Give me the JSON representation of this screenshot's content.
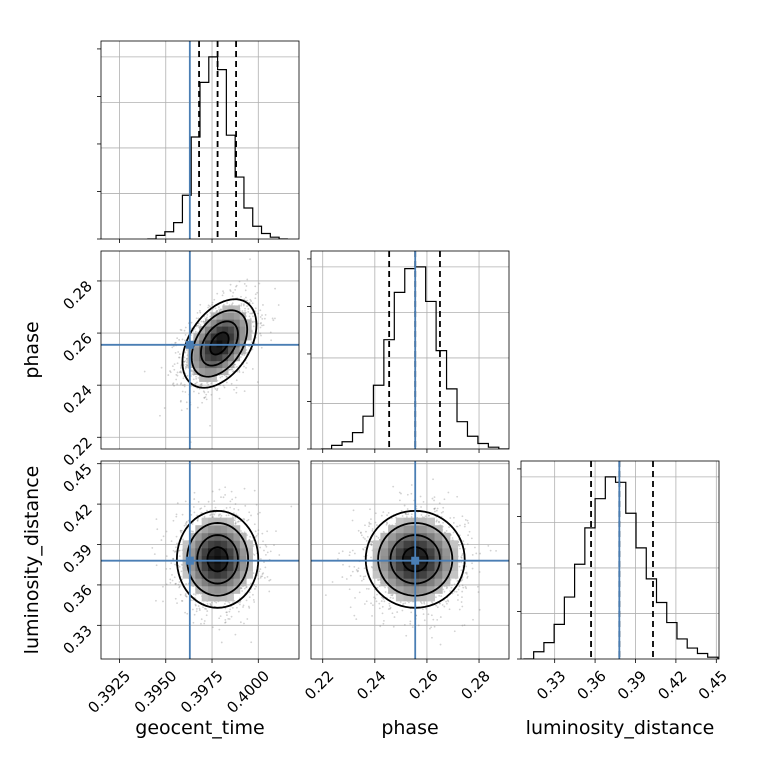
{
  "chart_data": {
    "type": "corner",
    "colors": {
      "truth": "#4a7eb4",
      "hist": "#000000",
      "grid": "#b0b0b0",
      "points": "#7f7f7f"
    },
    "parameters": [
      {
        "name": "geocent_time",
        "label": "geocent_time",
        "range": [
          0.3915,
          0.4022
        ],
        "ticks": [
          "0.3925",
          "0.3950",
          "0.3975",
          "0.4000"
        ],
        "truth": 0.3963,
        "quantiles": [
          0.3968,
          0.3978,
          0.3988
        ],
        "hist": [
          0.0,
          0.02,
          0.04,
          0.09,
          0.24,
          0.56,
          0.86,
          1.0,
          0.93,
          0.57,
          0.34,
          0.17,
          0.07,
          0.03,
          0.01,
          0.0
        ],
        "mean": 0.3978,
        "sd": 0.001
      },
      {
        "name": "phase",
        "label": "phase",
        "range": [
          0.2155,
          0.2915
        ],
        "ticks": [
          "0.22",
          "0.24",
          "0.26",
          "0.28"
        ],
        "truth": 0.2555,
        "quantiles": [
          0.2455,
          0.2555,
          0.265
        ],
        "hist": [
          0.0,
          0.02,
          0.04,
          0.09,
          0.18,
          0.35,
          0.6,
          0.86,
          0.99,
          1.0,
          0.81,
          0.54,
          0.33,
          0.15,
          0.07,
          0.03,
          0.01,
          0.0
        ],
        "mean": 0.2555,
        "sd": 0.0095
      },
      {
        "name": "luminosity_distance",
        "label": "luminosity_distance",
        "range": [
          0.305,
          0.452
        ],
        "ticks": [
          "0.33",
          "0.36",
          "0.39",
          "0.42",
          "0.45"
        ],
        "truth": 0.378,
        "quantiles": [
          0.357,
          0.378,
          0.403
        ],
        "hist": [
          0.0,
          0.04,
          0.09,
          0.19,
          0.34,
          0.52,
          0.72,
          0.88,
          1.0,
          0.97,
          0.8,
          0.61,
          0.44,
          0.31,
          0.2,
          0.11,
          0.06,
          0.03,
          0.01
        ],
        "mean": 0.379,
        "sd": 0.019
      }
    ],
    "panels_2d": [
      {
        "x": "geocent_time",
        "y": "phase",
        "x_mean": 0.3979,
        "y_mean": 0.256,
        "x_sd": 0.001,
        "y_sd": 0.0085,
        "rho": 0.42
      },
      {
        "x": "geocent_time",
        "y": "luminosity_distance",
        "x_mean": 0.3978,
        "y_mean": 0.379,
        "x_sd": 0.0011,
        "y_sd": 0.018,
        "rho": 0.0
      },
      {
        "x": "phase",
        "y": "luminosity_distance",
        "x_mean": 0.2555,
        "y_mean": 0.379,
        "x_sd": 0.0095,
        "y_sd": 0.018,
        "rho": 0.0
      }
    ],
    "contour_levels": [
      0.39,
      0.86,
      1.0
    ],
    "grid": true
  }
}
